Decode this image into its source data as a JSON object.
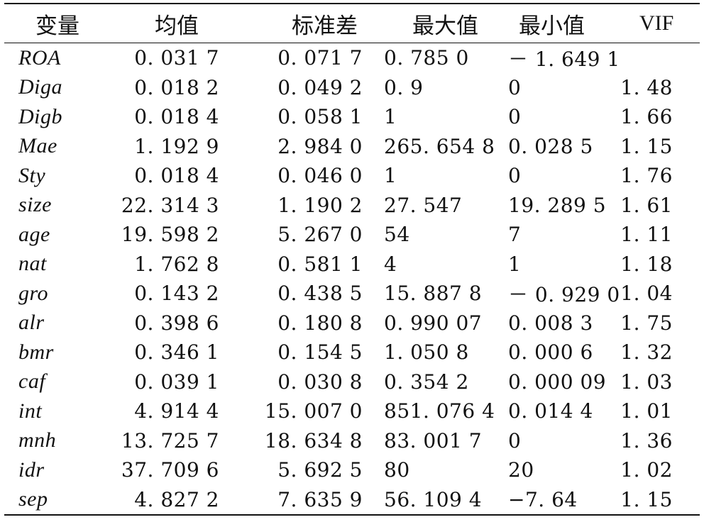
{
  "table": {
    "headers": [
      "变量",
      "均值",
      "标准差",
      "最大值",
      "最小值",
      "VIF"
    ],
    "rows": [
      {
        "var": "ROA",
        "mean": "0. 031 7",
        "sd": "0. 071 7",
        "max": "0. 785 0",
        "min": "－ 1. 649 1",
        "vif": ""
      },
      {
        "var": "Diga",
        "mean": "0. 018 2",
        "sd": "0. 049 2",
        "max": "0. 9",
        "min": "0",
        "vif": "1. 48"
      },
      {
        "var": "Digb",
        "mean": "0. 018 4",
        "sd": "0. 058 1",
        "max": "1",
        "min": "0",
        "vif": "1. 66"
      },
      {
        "var": "Mae",
        "mean": "1. 192 9",
        "sd": "2. 984 0",
        "max": "265. 654 8",
        "min": "0. 028 5",
        "vif": "1. 15"
      },
      {
        "var": "Sty",
        "mean": "0. 018 4",
        "sd": "0. 046 0",
        "max": "1",
        "min": "0",
        "vif": "1. 76"
      },
      {
        "var": "size",
        "mean": "22. 314 3",
        "sd": "1. 190 2",
        "max": "27. 547",
        "min": "19. 289 5",
        "vif": "1. 61"
      },
      {
        "var": "age",
        "mean": "19. 598 2",
        "sd": "5. 267 0",
        "max": "54",
        "min": "7",
        "vif": "1. 11"
      },
      {
        "var": "nat",
        "mean": "1. 762 8",
        "sd": "0. 581 1",
        "max": "4",
        "min": "1",
        "vif": "1. 18"
      },
      {
        "var": "gro",
        "mean": "0. 143 2",
        "sd": "0. 438 5",
        "max": "15. 887 8",
        "min": "－ 0. 929 0",
        "vif": "1. 04"
      },
      {
        "var": "alr",
        "mean": "0. 398 6",
        "sd": "0. 180 8",
        "max": "0. 990 07",
        "min": "0. 008 3",
        "vif": "1. 75"
      },
      {
        "var": "bmr",
        "mean": "0. 346 1",
        "sd": "0. 154 5",
        "max": "1. 050 8",
        "min": "0. 000 6",
        "vif": "1. 32"
      },
      {
        "var": "caf",
        "mean": "0. 039 1",
        "sd": "0. 030 8",
        "max": "0. 354 2",
        "min": "0. 000 09",
        "vif": "1. 03"
      },
      {
        "var": "int",
        "mean": "4. 914 4",
        "sd": "15. 007 0",
        "max": "851. 076 4",
        "min": "0. 014 4",
        "vif": "1. 01"
      },
      {
        "var": "mnh",
        "mean": "13. 725 7",
        "sd": "18. 634 8",
        "max": "83. 001 7",
        "min": "0",
        "vif": "1. 36"
      },
      {
        "var": "idr",
        "mean": "37. 709 6",
        "sd": "5. 692 5",
        "max": "80",
        "min": "20",
        "vif": "1. 02"
      },
      {
        "var": "sep",
        "mean": "4. 827 2",
        "sd": "7. 635 9",
        "max": "56. 109 4",
        "min": "−7. 64",
        "vif": "1. 15"
      }
    ]
  }
}
